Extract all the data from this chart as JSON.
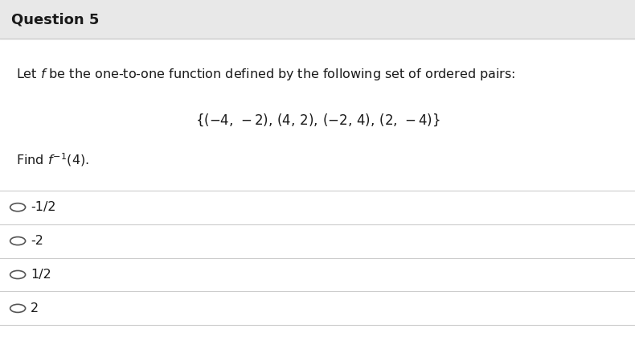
{
  "title": "Question 5",
  "title_bg_color": "#e8e8e8",
  "bg_color": "#ffffff",
  "separator_color": "#cccccc",
  "question_text": "Let $f$ be the one-to-one function defined by the following set of ordered pairs:",
  "set_text": "$\\{(-4,\\,-2),\\,(4,\\,2),\\,(-2,\\,4),\\,(2,\\,-4)\\}$",
  "find_text": "Find $f^{-1}(4)$.",
  "options": [
    "-1/2",
    "-2",
    "1/2",
    "2"
  ],
  "option_prefix": "○  ",
  "text_color": "#1a1a1a",
  "font_size_title": 13,
  "font_size_question": 11.5,
  "font_size_set": 12,
  "font_size_find": 11.5,
  "font_size_options": 11.5
}
